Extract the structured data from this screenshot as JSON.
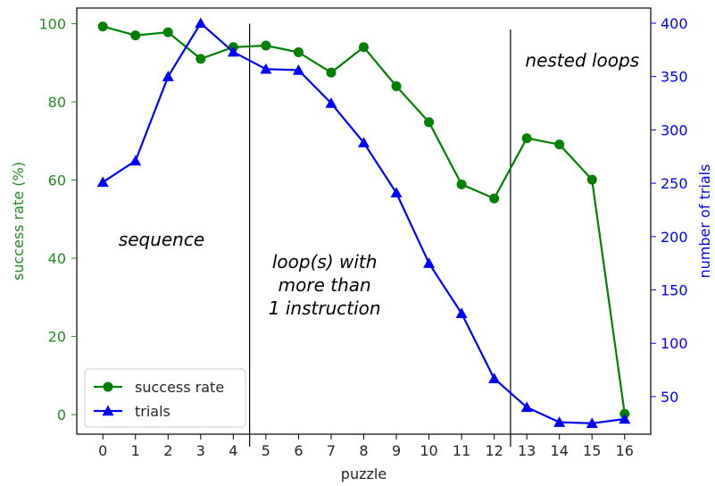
{
  "chart_data": {
    "type": "line",
    "x": [
      0,
      1,
      2,
      3,
      4,
      5,
      6,
      7,
      8,
      9,
      10,
      11,
      12,
      13,
      14,
      15,
      16
    ],
    "xlabel": "puzzle",
    "xlim": [
      -0.8,
      16.8
    ],
    "xticks": [
      0,
      1,
      2,
      3,
      4,
      5,
      6,
      7,
      8,
      9,
      10,
      11,
      12,
      13,
      14,
      15,
      16
    ],
    "series": [
      {
        "name": "success rate",
        "axis": "left",
        "color": "#008000",
        "marker": "circle",
        "values": [
          99.3,
          97.0,
          97.8,
          91.0,
          94.0,
          94.4,
          92.7,
          87.5,
          94.0,
          84.0,
          74.8,
          58.9,
          55.3,
          70.7,
          69.1,
          60.1,
          0.2
        ]
      },
      {
        "name": "trials",
        "axis": "right",
        "color": "#0000ff",
        "marker": "triangle",
        "values": [
          251,
          271,
          350,
          400,
          373,
          357,
          356,
          325,
          288,
          241,
          175,
          128,
          67,
          40,
          26,
          25,
          29
        ]
      }
    ],
    "y_left": {
      "label": "success rate (%)",
      "color": "#228B22",
      "ylim": [
        -5,
        104
      ],
      "ticks": [
        0,
        20,
        40,
        60,
        80,
        100
      ]
    },
    "y_right": {
      "label": "number of trials",
      "color": "#0000ff",
      "ylim": [
        14.8,
        414.2
      ],
      "ticks": [
        50,
        100,
        150,
        200,
        250,
        300,
        350,
        400
      ]
    },
    "separators": [
      {
        "x": 4.5,
        "top": 100,
        "axis": "left"
      },
      {
        "x": 12.5,
        "top": 98.5,
        "axis": "left"
      }
    ],
    "annotations": [
      {
        "lines": [
          "sequence"
        ],
        "x": 1.8,
        "y": 43.2,
        "axis": "left"
      },
      {
        "lines": [
          "loop(s) with",
          "more than",
          "1 instruction"
        ],
        "x": 6.8,
        "y": 37.5,
        "axis": "left"
      },
      {
        "lines": [
          "nested loops"
        ],
        "x": 14.7,
        "y": 89.0,
        "axis": "left"
      }
    ],
    "legend": {
      "position": "lower-left",
      "entries": [
        "success rate",
        "trials"
      ]
    },
    "grid": false
  }
}
